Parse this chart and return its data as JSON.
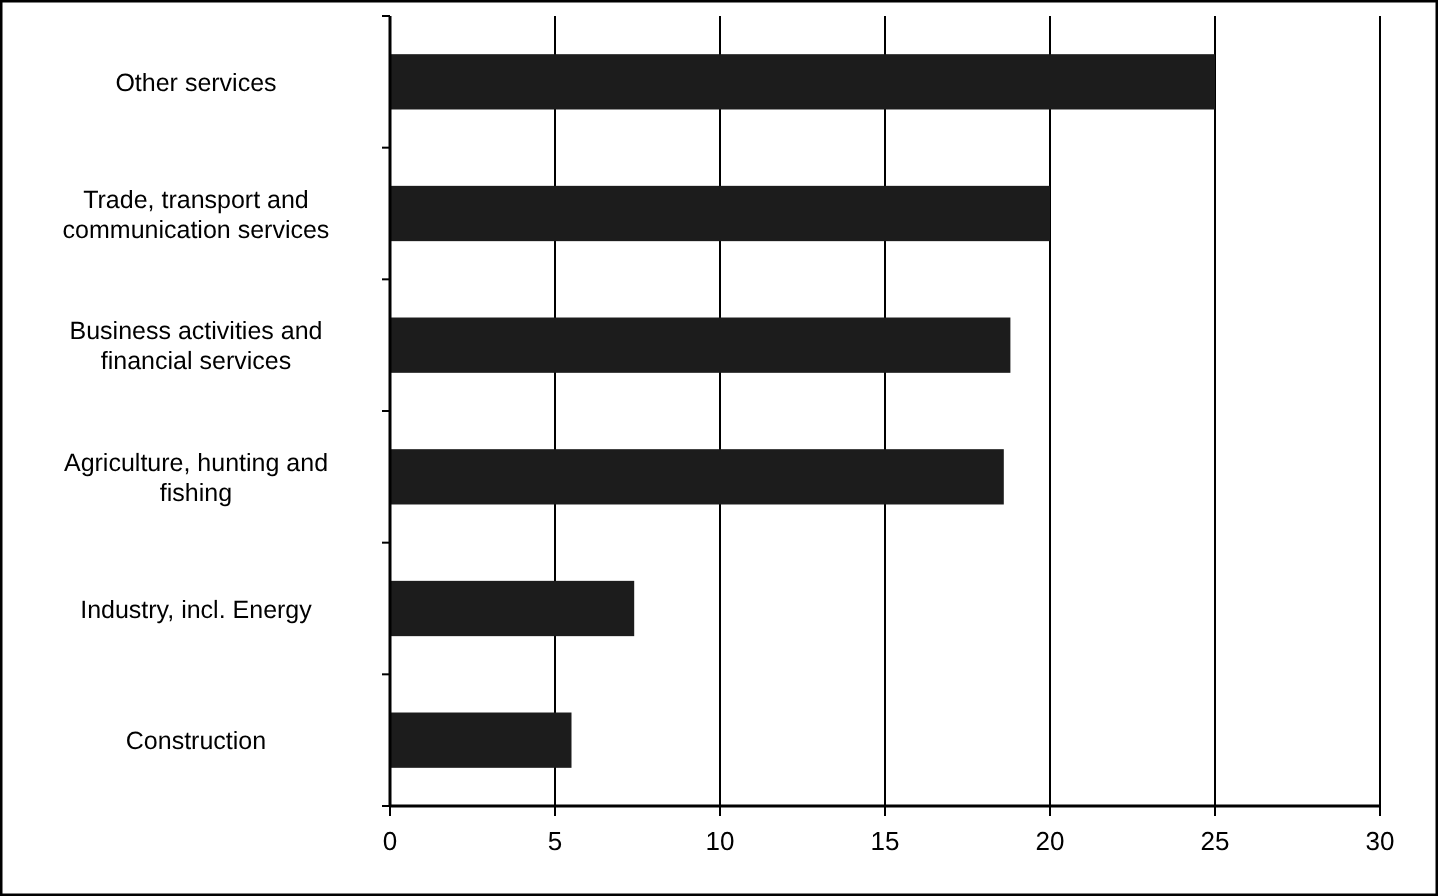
{
  "chart_data": {
    "type": "bar",
    "orientation": "horizontal",
    "categories": [
      "Other services",
      "Trade, transport and communication services",
      "Business activities and financial services",
      "Agriculture, hunting and fishing",
      "Industry, incl. Energy",
      "Construction"
    ],
    "values": [
      25,
      20,
      18.8,
      18.6,
      7.4,
      5.5
    ],
    "color": "#1c1c1c",
    "xlim": [
      0,
      30
    ],
    "xticks": [
      0,
      5,
      10,
      15,
      20,
      25,
      30
    ],
    "grid": "x"
  }
}
